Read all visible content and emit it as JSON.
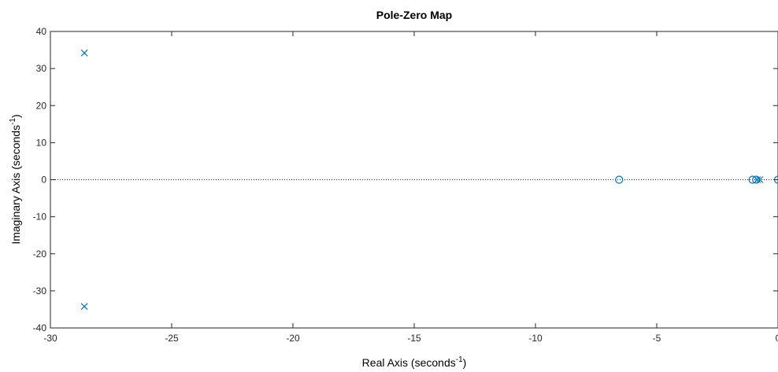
{
  "chart_data": {
    "type": "scatter",
    "title": "Pole-Zero Map",
    "xlabel": {
      "main": "Real Axis (seconds",
      "sup": "-1",
      "close": ")"
    },
    "ylabel": {
      "main": "Imaginary Axis (seconds",
      "sup": "-1",
      "close": ")"
    },
    "xlim": [
      -30,
      0
    ],
    "ylim": [
      -40,
      40
    ],
    "x_ticks": [
      -30,
      -25,
      -20,
      -15,
      -10,
      -5,
      0
    ],
    "x_tick_labels": [
      "-30",
      "-25",
      "-20",
      "-15",
      "-10",
      "-5",
      "0"
    ],
    "y_ticks": [
      -40,
      -30,
      -20,
      -10,
      0,
      10,
      20,
      30,
      40
    ],
    "y_tick_labels": [
      "-40",
      "-30",
      "-20",
      "-10",
      "0",
      "10",
      "20",
      "30",
      "40"
    ],
    "zero_line": true,
    "grid": false,
    "colors": {
      "marker": "#0072bd",
      "axes": "#262626",
      "zero_line": "#262626"
    },
    "poles": [
      {
        "x": -28.6,
        "y": 34.2
      },
      {
        "x": -28.6,
        "y": -34.2
      },
      {
        "x": -0.85,
        "y": 0
      },
      {
        "x": -0.75,
        "y": 0
      }
    ],
    "zeros": [
      {
        "x": -6.55,
        "y": 0
      },
      {
        "x": -1.05,
        "y": 0
      },
      {
        "x": -0.9,
        "y": 0
      },
      {
        "x": 0,
        "y": 0
      }
    ]
  }
}
